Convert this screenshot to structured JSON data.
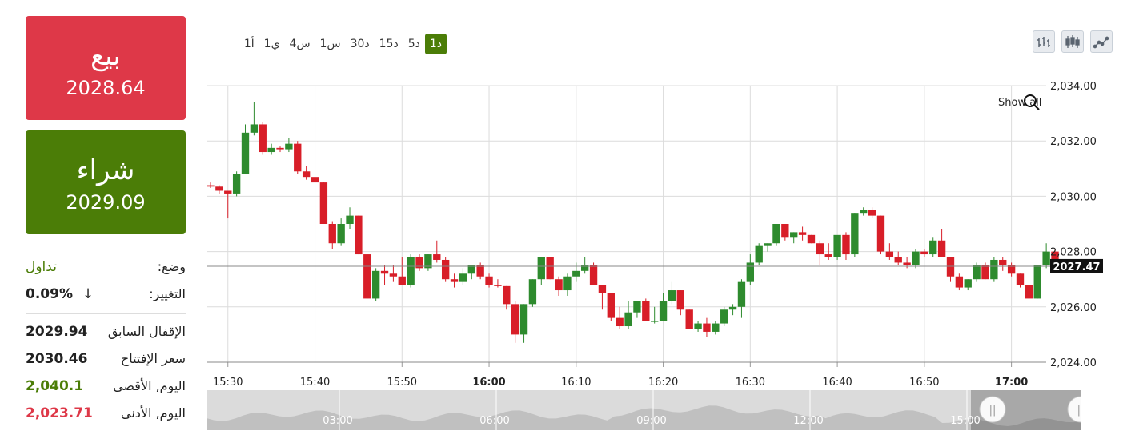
{
  "sell": {
    "label": "بيع",
    "price": "2028.64"
  },
  "buy": {
    "label": "شراء",
    "price": "2029.09"
  },
  "stats": {
    "status_label": "وضع:",
    "status_value": "تداول",
    "change_label": "التغيير:",
    "change_value": "0.09%",
    "change_arrow": "↓",
    "prev_close_label": "الإقفال السابق",
    "prev_close_value": "2029.94",
    "open_label": "سعر الإفتتاح",
    "open_value": "2030.46",
    "high_label": "اليوم, الأقصى",
    "high_value": "2,040.1",
    "low_label": "اليوم, الأدنى",
    "low_value": "2,023.71"
  },
  "timeframes": [
    "1أ",
    "1ي",
    "4س",
    "1س",
    "30د",
    "15د",
    "5د",
    "1د"
  ],
  "active_timeframe": "1د",
  "tools": [
    "bar-chart-icon",
    "candlestick-chart-icon",
    "line-chart-icon"
  ],
  "show_all": "Show all",
  "colors": {
    "up": "#2e8b2e",
    "down": "#d81e28",
    "buy": "#4b7d07",
    "sell": "#de3848"
  },
  "chart_data": {
    "type": "candlestick",
    "y_ticks": [
      "2,034.00",
      "2,032.00",
      "2,030.00",
      "2,028.00",
      "2,026.00",
      "2,024.00"
    ],
    "ylim": [
      2024,
      2034
    ],
    "x_ticks": [
      "15:30",
      "15:40",
      "15:50",
      "16:00",
      "16:10",
      "16:20",
      "16:30",
      "16:40",
      "16:50",
      "17:00"
    ],
    "bold_x_ticks": [
      "16:00",
      "17:00"
    ],
    "current_price": "2027.47",
    "current_value": 2027.47,
    "candles": [
      [
        2030.4,
        2030.5,
        2030.3,
        2030.35
      ],
      [
        2030.35,
        2030.4,
        2030.1,
        2030.2
      ],
      [
        2030.2,
        2030.2,
        2029.2,
        2030.1
      ],
      [
        2030.1,
        2030.9,
        2030.0,
        2030.8
      ],
      [
        2030.8,
        2032.6,
        2030.8,
        2032.3
      ],
      [
        2032.3,
        2033.4,
        2032.2,
        2032.6
      ],
      [
        2032.6,
        2032.7,
        2031.5,
        2031.6
      ],
      [
        2031.6,
        2031.9,
        2031.5,
        2031.75
      ],
      [
        2031.75,
        2031.8,
        2031.6,
        2031.7
      ],
      [
        2031.7,
        2032.1,
        2031.6,
        2031.9
      ],
      [
        2031.9,
        2032.0,
        2030.8,
        2030.9
      ],
      [
        2030.9,
        2031.1,
        2030.6,
        2030.7
      ],
      [
        2030.7,
        2030.7,
        2030.3,
        2030.5
      ],
      [
        2030.5,
        2030.5,
        2029.0,
        2029.0
      ],
      [
        2029.0,
        2029.1,
        2028.1,
        2028.3
      ],
      [
        2028.3,
        2029.2,
        2028.2,
        2029.0
      ],
      [
        2029.0,
        2029.6,
        2028.8,
        2029.3
      ],
      [
        2029.3,
        2029.3,
        2027.9,
        2027.9
      ],
      [
        2027.9,
        2027.9,
        2026.3,
        2026.3
      ],
      [
        2026.3,
        2027.4,
        2026.2,
        2027.3
      ],
      [
        2027.3,
        2027.5,
        2026.8,
        2027.2
      ],
      [
        2027.2,
        2027.5,
        2026.9,
        2027.1
      ],
      [
        2027.1,
        2027.8,
        2026.8,
        2026.8
      ],
      [
        2026.8,
        2027.9,
        2026.7,
        2027.8
      ],
      [
        2027.8,
        2027.9,
        2027.3,
        2027.4
      ],
      [
        2027.4,
        2027.9,
        2027.3,
        2027.9
      ],
      [
        2027.9,
        2028.4,
        2027.6,
        2027.7
      ],
      [
        2027.7,
        2027.8,
        2026.9,
        2027.0
      ],
      [
        2027.0,
        2027.2,
        2026.7,
        2026.9
      ],
      [
        2026.9,
        2027.4,
        2026.8,
        2027.2
      ],
      [
        2027.2,
        2027.4,
        2027.0,
        2027.5
      ],
      [
        2027.5,
        2027.6,
        2027.0,
        2027.1
      ],
      [
        2027.1,
        2027.2,
        2026.7,
        2026.8
      ],
      [
        2026.8,
        2027.0,
        2026.7,
        2026.75
      ],
      [
        2026.75,
        2026.75,
        2025.9,
        2026.1
      ],
      [
        2026.1,
        2026.2,
        2024.7,
        2025.0
      ],
      [
        2025.0,
        2026.1,
        2024.7,
        2026.1
      ],
      [
        2026.1,
        2027.0,
        2026.0,
        2027.0
      ],
      [
        2027.0,
        2027.8,
        2026.8,
        2027.8
      ],
      [
        2027.8,
        2027.8,
        2027.0,
        2027.0
      ],
      [
        2027.0,
        2027.1,
        2026.4,
        2026.6
      ],
      [
        2026.6,
        2027.2,
        2026.4,
        2027.1
      ],
      [
        2027.1,
        2027.6,
        2026.9,
        2027.3
      ],
      [
        2027.3,
        2027.8,
        2027.2,
        2027.5
      ],
      [
        2027.5,
        2027.6,
        2026.8,
        2026.8
      ],
      [
        2026.8,
        2026.8,
        2025.9,
        2026.5
      ],
      [
        2026.5,
        2026.5,
        2025.5,
        2025.6
      ],
      [
        2025.6,
        2026.0,
        2025.2,
        2025.3
      ],
      [
        2025.3,
        2026.2,
        2025.2,
        2025.8
      ],
      [
        2025.8,
        2026.2,
        2025.6,
        2026.2
      ],
      [
        2026.2,
        2026.3,
        2025.5,
        2025.5
      ],
      [
        2025.5,
        2026.0,
        2025.4,
        2025.5
      ],
      [
        2025.5,
        2026.5,
        2025.5,
        2026.2
      ],
      [
        2026.2,
        2026.9,
        2026.1,
        2026.6
      ],
      [
        2026.6,
        2026.6,
        2025.7,
        2025.9
      ],
      [
        2025.9,
        2025.9,
        2025.2,
        2025.2
      ],
      [
        2025.2,
        2025.5,
        2025.1,
        2025.4
      ],
      [
        2025.4,
        2025.6,
        2024.9,
        2025.1
      ],
      [
        2025.1,
        2025.5,
        2025.0,
        2025.4
      ],
      [
        2025.4,
        2026.0,
        2025.3,
        2025.9
      ],
      [
        2025.9,
        2026.1,
        2025.7,
        2026.0
      ],
      [
        2026.0,
        2027.0,
        2025.6,
        2026.9
      ],
      [
        2026.9,
        2027.9,
        2026.8,
        2027.6
      ],
      [
        2027.6,
        2028.3,
        2027.5,
        2028.2
      ],
      [
        2028.2,
        2028.3,
        2028.0,
        2028.3
      ],
      [
        2028.3,
        2029.0,
        2028.2,
        2029.0
      ],
      [
        2029.0,
        2029.0,
        2028.4,
        2028.5
      ],
      [
        2028.5,
        2028.7,
        2028.3,
        2028.7
      ],
      [
        2028.7,
        2028.9,
        2028.4,
        2028.6
      ],
      [
        2028.6,
        2028.6,
        2028.3,
        2028.3
      ],
      [
        2028.3,
        2028.4,
        2027.5,
        2027.9
      ],
      [
        2027.9,
        2028.3,
        2027.7,
        2027.8
      ],
      [
        2027.8,
        2028.5,
        2027.7,
        2028.6
      ],
      [
        2028.6,
        2028.7,
        2027.7,
        2027.9
      ],
      [
        2027.9,
        2029.4,
        2027.8,
        2029.4
      ],
      [
        2029.4,
        2029.6,
        2029.3,
        2029.5
      ],
      [
        2029.5,
        2029.6,
        2029.2,
        2029.3
      ],
      [
        2029.3,
        2029.3,
        2027.9,
        2028.0
      ],
      [
        2028.0,
        2028.3,
        2027.7,
        2027.8
      ],
      [
        2027.8,
        2028.0,
        2027.5,
        2027.6
      ],
      [
        2027.6,
        2027.8,
        2027.4,
        2027.5
      ],
      [
        2027.5,
        2028.1,
        2027.4,
        2028.0
      ],
      [
        2028.0,
        2028.1,
        2027.8,
        2027.9
      ],
      [
        2027.9,
        2028.5,
        2027.8,
        2028.4
      ],
      [
        2028.4,
        2028.8,
        2027.8,
        2027.8
      ],
      [
        2027.8,
        2027.8,
        2026.9,
        2027.1
      ],
      [
        2027.1,
        2027.2,
        2026.6,
        2026.7
      ],
      [
        2026.7,
        2027.0,
        2026.6,
        2027.0
      ],
      [
        2027.0,
        2027.6,
        2026.9,
        2027.5
      ],
      [
        2027.5,
        2027.6,
        2027.0,
        2027.0
      ],
      [
        2027.0,
        2027.8,
        2026.9,
        2027.7
      ],
      [
        2027.7,
        2027.8,
        2027.3,
        2027.5
      ],
      [
        2027.5,
        2027.6,
        2027.1,
        2027.2
      ],
      [
        2027.2,
        2027.2,
        2026.7,
        2026.8
      ],
      [
        2026.8,
        2026.8,
        2026.3,
        2026.3
      ],
      [
        2026.3,
        2027.5,
        2026.3,
        2027.5
      ],
      [
        2027.5,
        2028.3,
        2027.4,
        2028.0
      ],
      [
        2028.0,
        2028.1,
        2027.5,
        2027.7
      ]
    ]
  },
  "navigator": {
    "labels": [
      "03:00",
      "06:00",
      "09:00",
      "12:00",
      "15:00"
    ],
    "handle_left": "||",
    "handle_right": "||"
  }
}
